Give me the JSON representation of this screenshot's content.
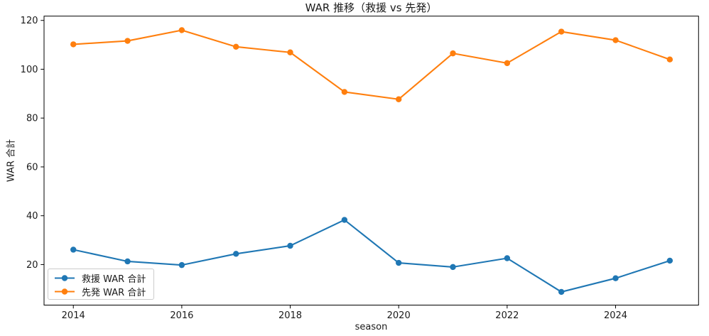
{
  "figure": {
    "background": "#ffffff"
  },
  "chart_data": {
    "type": "line",
    "title": "WAR 推移（救援 vs 先発）",
    "xlabel": "season",
    "ylabel": "WAR 合計",
    "x": [
      2014,
      2015,
      2016,
      2017,
      2018,
      2019,
      2020,
      2021,
      2022,
      2023,
      2024,
      2025
    ],
    "series": [
      {
        "name": "救援 WAR 合計",
        "color": "#1f77b4",
        "marker": "o",
        "values": [
          26.1,
          21.3,
          19.8,
          24.4,
          27.7,
          38.3,
          20.7,
          19.0,
          22.6,
          8.8,
          14.4,
          21.6
        ]
      },
      {
        "name": "先発 WAR 合計",
        "color": "#ff7f0e",
        "marker": "o",
        "values": [
          110.2,
          111.6,
          116.0,
          109.2,
          106.9,
          90.7,
          87.7,
          106.5,
          102.5,
          115.4,
          111.9,
          104.0
        ]
      }
    ],
    "xlim": [
      2013.46,
      2025.53
    ],
    "ylim": [
      3.4,
      121.75
    ],
    "xticks": {
      "values": [
        2014,
        2016,
        2018,
        2020,
        2022,
        2024
      ],
      "labels": [
        "2014",
        "2016",
        "2018",
        "2020",
        "2022",
        "2024"
      ]
    },
    "yticks": {
      "values": [
        20,
        40,
        60,
        80,
        100,
        120
      ],
      "labels": [
        "20",
        "40",
        "60",
        "80",
        "100",
        "120"
      ]
    },
    "grid": false,
    "legend": {
      "position": "lower left"
    },
    "spine_color": "#000000",
    "text_color": "#1a1a1a"
  }
}
